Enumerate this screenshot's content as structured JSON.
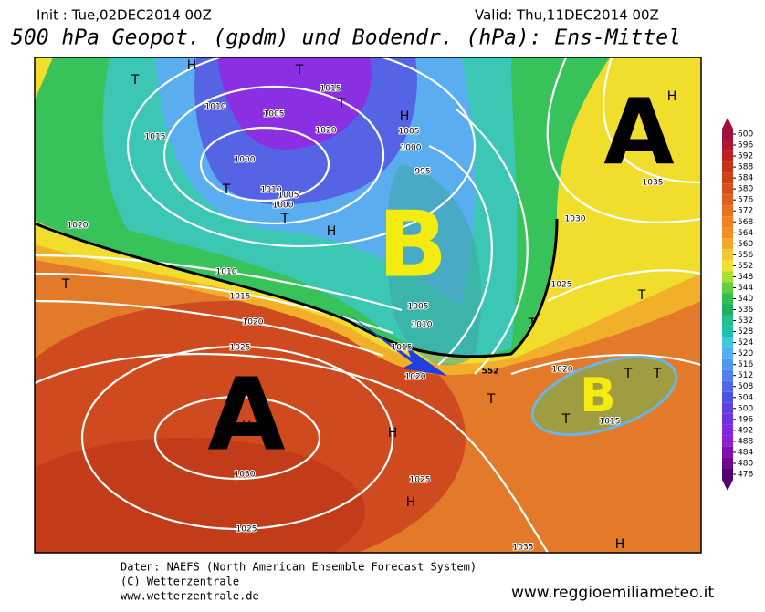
{
  "header": {
    "init": "Init : Tue,02DEC2014 00Z",
    "valid": "Valid: Thu,11DEC2014 00Z",
    "title": "500 hPa Geopot. (gpdm) und Bodendr. (hPa): Ens-Mittel"
  },
  "map": {
    "big_labels": [
      "A",
      "B",
      "A",
      "B"
    ],
    "markers": [
      "H",
      "T",
      "T",
      "T",
      "H",
      "T",
      "T",
      "H",
      "T",
      "T",
      "T",
      "H",
      "T",
      "T",
      "T",
      "T",
      "H",
      "H",
      "H",
      "H"
    ],
    "isobar_labels": [
      1010,
      1005,
      1015,
      1020,
      1015,
      1000,
      1010,
      1005,
      1000,
      1005,
      1000,
      995,
      1020,
      1010,
      1015,
      1020,
      1025,
      1030,
      1025,
      1025,
      1025,
      1005,
      1010,
      1015,
      1020,
      1020,
      1025,
      1030,
      1035,
      1015,
      1035
    ],
    "height_label": 552
  },
  "colorbar": {
    "ticks": [
      600,
      596,
      592,
      588,
      584,
      580,
      576,
      572,
      568,
      564,
      560,
      556,
      552,
      548,
      544,
      540,
      536,
      532,
      528,
      524,
      520,
      516,
      512,
      508,
      504,
      500,
      496,
      492,
      488,
      484,
      480,
      476
    ],
    "colors": [
      "#a01040",
      "#b01830",
      "#c02020",
      "#c83018",
      "#d04018",
      "#d85020",
      "#e06020",
      "#e87020",
      "#f08020",
      "#f09020",
      "#f0a828",
      "#f0c830",
      "#f0e030",
      "#a8e030",
      "#60d040",
      "#30c050",
      "#20b060",
      "#20c090",
      "#20c0b0",
      "#40c8d8",
      "#50b0f0",
      "#5098f0",
      "#5080f0",
      "#5068e8",
      "#5050e0",
      "#6040e0",
      "#7030e0",
      "#8028e0",
      "#9020d0",
      "#8010b0",
      "#700890",
      "#500070"
    ]
  },
  "footer": {
    "source": "Daten: NAEFS (North American Ensemble Forecast System)",
    "copyright": "(C) Wetterzentrale",
    "site": "www.wetterzentrale.de",
    "watermark": "www.reggioemiliameteo.it"
  }
}
